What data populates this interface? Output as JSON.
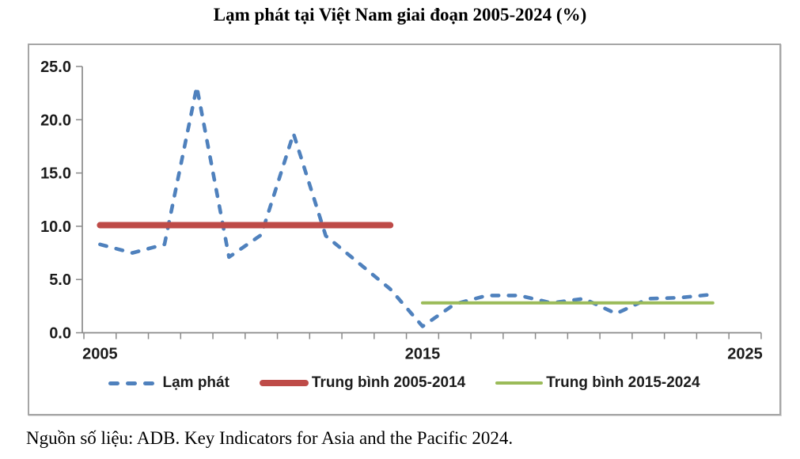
{
  "title": "Lạm phát tại Việt Nam giai đoạn 2005-2024 (%)",
  "source_note": "Nguồn số liệu: ADB. Key Indicators for Asia and the Pacific 2024.",
  "colors": {
    "inflation_blue": "#4F81BD",
    "avg_red": "#BE4B48",
    "avg_green": "#9BBB59",
    "axis_gray": "#8A8A8A",
    "label_dark": "#1C1C1C"
  },
  "legend": {
    "items": [
      {
        "label": "Lạm phát",
        "sample": "dashes",
        "color": "#4F81BD"
      },
      {
        "label": "Trung bình 2005-2014",
        "sample": "solid-thick",
        "color": "#BE4B48"
      },
      {
        "label": "Trung bình 2015-2024",
        "sample": "solid-thin",
        "color": "#9BBB59"
      }
    ]
  },
  "chart_data": {
    "type": "line",
    "title": "Lạm phát tại Việt Nam giai đoạn 2005-2024 (%)",
    "xlabel": "",
    "ylabel": "",
    "x": [
      2005,
      2006,
      2007,
      2008,
      2009,
      2010,
      2011,
      2012,
      2013,
      2014,
      2015,
      2016,
      2017,
      2018,
      2019,
      2020,
      2021,
      2022,
      2023,
      2024
    ],
    "series": [
      {
        "id": "inflation-line",
        "name": "Lạm phát",
        "type": "line",
        "style": "dashed",
        "color": "#4F81BD",
        "stroke_width": 4.6,
        "values": [
          8.3,
          7.5,
          8.3,
          23.1,
          7.1,
          9.2,
          18.7,
          9.1,
          6.6,
          4.1,
          0.6,
          2.7,
          3.5,
          3.5,
          2.8,
          3.2,
          1.8,
          3.2,
          3.3,
          3.6
        ]
      },
      {
        "id": "avg-2005-2014-line",
        "name": "Trung bình 2005-2014",
        "type": "hline",
        "style": "solid",
        "color": "#BE4B48",
        "stroke_width": 8,
        "value": 10.1,
        "x_start": 2005,
        "x_end": 2014
      },
      {
        "id": "avg-2015-2024-line",
        "name": "Trung bình 2015-2024",
        "type": "hline",
        "style": "solid",
        "color": "#9BBB59",
        "stroke_width": 4,
        "value": 2.8,
        "x_start": 2015,
        "x_end": 2024
      }
    ],
    "ylim": [
      0,
      25
    ],
    "xlim": [
      2004.5,
      2025.5
    ],
    "y_ticks": [
      "0.0",
      "5.0",
      "10.0",
      "15.0",
      "20.0",
      "25.0"
    ],
    "y_tick_values": [
      0,
      5,
      10,
      15,
      20,
      25
    ],
    "x_tick_labels": [
      {
        "year": 2005,
        "label": "2005"
      },
      {
        "year": 2015,
        "label": "2015"
      },
      {
        "year": 2025,
        "label": "2025"
      }
    ],
    "grid": false,
    "legend_position": "bottom"
  }
}
